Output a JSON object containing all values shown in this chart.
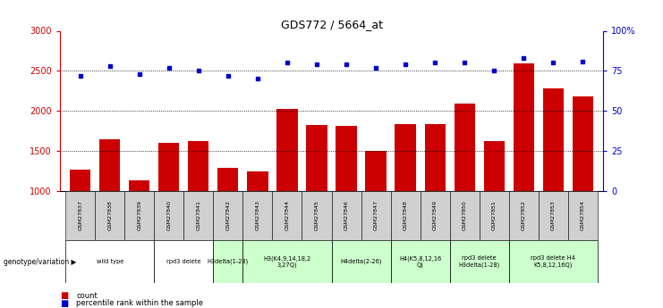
{
  "title": "GDS772 / 5664_at",
  "samples": [
    "GSM27837",
    "GSM27838",
    "GSM27839",
    "GSM27840",
    "GSM27841",
    "GSM27842",
    "GSM27843",
    "GSM27844",
    "GSM27845",
    "GSM27846",
    "GSM27847",
    "GSM27848",
    "GSM27849",
    "GSM27850",
    "GSM27851",
    "GSM27852",
    "GSM27853",
    "GSM27854"
  ],
  "counts": [
    1270,
    1650,
    1130,
    1600,
    1620,
    1290,
    1240,
    2030,
    1820,
    1810,
    1500,
    1840,
    1830,
    2090,
    1620,
    2590,
    2280,
    2180
  ],
  "percentiles": [
    72,
    78,
    73,
    77,
    75,
    72,
    70,
    80,
    79,
    79,
    77,
    79,
    80,
    80,
    75,
    83,
    80,
    81
  ],
  "bar_color": "#cc0000",
  "dot_color": "#0000cc",
  "ylim_left": [
    1000,
    3000
  ],
  "ylim_right": [
    0,
    100
  ],
  "yticks_left": [
    1000,
    1500,
    2000,
    2500,
    3000
  ],
  "yticks_right": [
    0,
    25,
    50,
    75,
    100
  ],
  "ytick_labels_right": [
    "0",
    "25",
    "50",
    "75",
    "100%"
  ],
  "hlines": [
    1500,
    2000,
    2500
  ],
  "groups": [
    {
      "label": "wild type",
      "start": 0,
      "end": 3,
      "color": "#ffffff"
    },
    {
      "label": "rpd3 delete",
      "start": 3,
      "end": 5,
      "color": "#ffffff"
    },
    {
      "label": "H3delta(1-28)",
      "start": 5,
      "end": 6,
      "color": "#ccffcc"
    },
    {
      "label": "H3(K4,9,14,18,2\n3,27Q)",
      "start": 6,
      "end": 9,
      "color": "#ccffcc"
    },
    {
      "label": "H4delta(2-26)",
      "start": 9,
      "end": 11,
      "color": "#ccffcc"
    },
    {
      "label": "H4(K5,8,12,16\nQ)",
      "start": 11,
      "end": 13,
      "color": "#ccffcc"
    },
    {
      "label": "rpd3 delete\nH3delta(1-28)",
      "start": 13,
      "end": 15,
      "color": "#ccffcc"
    },
    {
      "label": "rpd3 delete H4\nK5,8,12,16Q)",
      "start": 15,
      "end": 18,
      "color": "#ccffcc"
    }
  ],
  "xlabel_genotype": "genotype/variation",
  "legend_count_label": "count",
  "legend_pct_label": "percentile rank within the sample",
  "background_color": "#ffffff",
  "sample_band_color": "#d0d0d0"
}
